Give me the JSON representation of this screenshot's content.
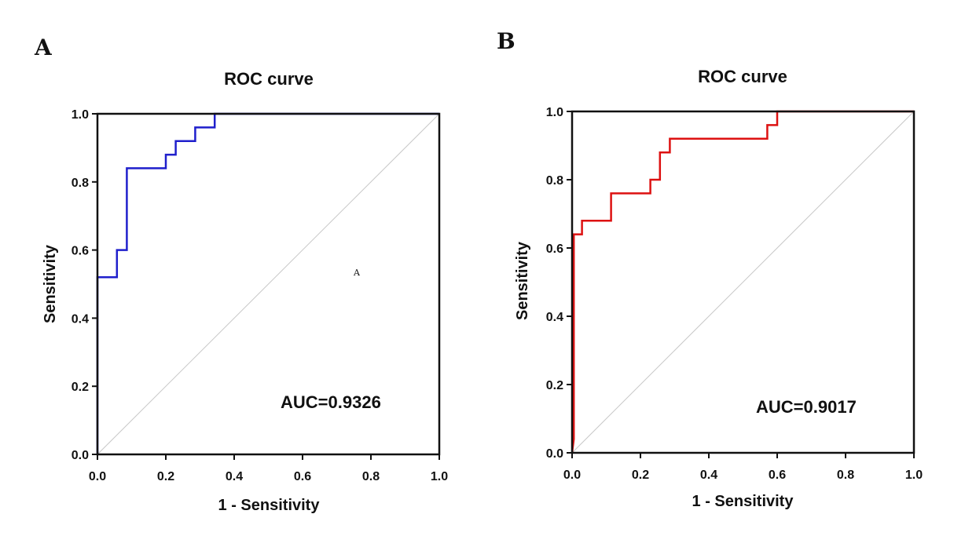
{
  "chart_data": [
    {
      "type": "line",
      "panel_label": "A",
      "title": "ROC curve",
      "xlabel": "1 - Sensitivity",
      "ylabel": "Sensitivity",
      "xlim": [
        0,
        1
      ],
      "ylim": [
        0,
        1
      ],
      "xticks": [
        "0.0",
        "0.2",
        "0.4",
        "0.6",
        "0.8",
        "1.0"
      ],
      "yticks": [
        "0.0",
        "0.2",
        "0.4",
        "0.6",
        "0.8",
        "1.0"
      ],
      "annotation": "AUC=0.9326",
      "stray_text": "A",
      "line_color": "#1f1fcc",
      "reference_line_color": "#c8c8c8",
      "series": [
        {
          "name": "ROC",
          "x": [
            0,
            0,
            0.057,
            0.057,
            0.086,
            0.086,
            0.2,
            0.2,
            0.229,
            0.229,
            0.286,
            0.286,
            0.343,
            0.343,
            1.0
          ],
          "y": [
            0,
            0.52,
            0.52,
            0.6,
            0.6,
            0.84,
            0.84,
            0.88,
            0.88,
            0.92,
            0.92,
            0.96,
            0.96,
            1.0,
            1.0
          ]
        }
      ]
    },
    {
      "type": "line",
      "panel_label": "B",
      "title": "ROC curve",
      "xlabel": "1 - Sensitivity",
      "ylabel": "Sensitivity",
      "xlim": [
        0,
        1
      ],
      "ylim": [
        0,
        1
      ],
      "xticks": [
        "0.0",
        "0.2",
        "0.4",
        "0.6",
        "0.8",
        "1.0"
      ],
      "yticks": [
        "0.0",
        "0.2",
        "0.4",
        "0.6",
        "0.8",
        "1.0"
      ],
      "annotation": "AUC=0.9017",
      "line_color": "#dd1111",
      "reference_line_color": "#c8c8c8",
      "series": [
        {
          "name": "ROC",
          "x": [
            0,
            0.005,
            0.005,
            0.029,
            0.029,
            0.114,
            0.114,
            0.229,
            0.229,
            0.257,
            0.257,
            0.286,
            0.286,
            0.571,
            0.571,
            0.6,
            0.6,
            1.0
          ],
          "y": [
            0,
            0.04,
            0.64,
            0.64,
            0.68,
            0.68,
            0.76,
            0.76,
            0.8,
            0.8,
            0.88,
            0.88,
            0.92,
            0.92,
            0.96,
            0.96,
            1.0,
            1.0
          ]
        }
      ]
    }
  ]
}
